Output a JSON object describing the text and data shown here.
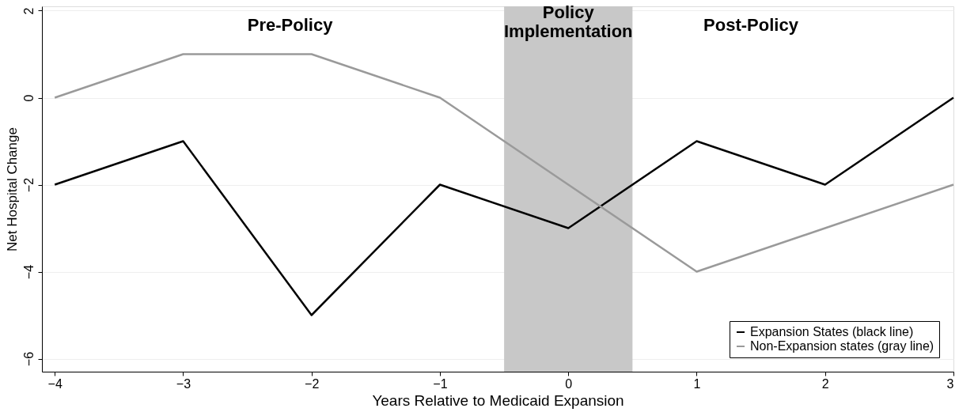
{
  "chart_data": {
    "type": "line",
    "xlabel": "Years Relative to Medicaid Expansion",
    "ylabel": "Net Hospital Change",
    "x": [
      -4,
      -3,
      -2,
      -1,
      0,
      1,
      2,
      3
    ],
    "series": [
      {
        "name": "Expansion States (black line)",
        "color": "#000000",
        "values": [
          -2,
          -1,
          -5,
          -2,
          -3,
          -1,
          -2,
          0
        ]
      },
      {
        "name": "Non-Expansion states (gray line)",
        "color": "#9a9a9a",
        "values": [
          0,
          1,
          1,
          0,
          -2,
          -4,
          -3,
          -2
        ]
      }
    ],
    "xlim": [
      -4.1,
      3
    ],
    "xticks": [
      -4,
      -3,
      -2,
      -1,
      0,
      1,
      2,
      3
    ],
    "ylim": [
      -6.3,
      2.1
    ],
    "yticks": [
      -6,
      -4,
      -2,
      0,
      2
    ],
    "bands": [
      {
        "axis": "x",
        "from": -0.5,
        "to": 0.5,
        "label": "Policy Implementation",
        "color": "#c8c8c8"
      }
    ],
    "annotations": [
      "Pre-Policy",
      "Post-Policy"
    ],
    "grid": "y",
    "legend": "bottom right",
    "marker": "none",
    "line_style": "solid"
  }
}
